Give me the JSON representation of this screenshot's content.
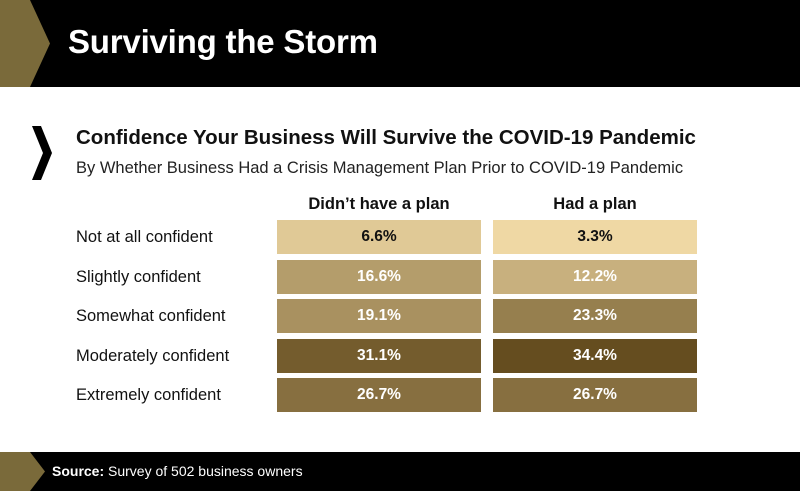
{
  "header": {
    "title": "Surviving the Storm",
    "accent_color": "#7a6a3a"
  },
  "chart_data": {
    "type": "table",
    "title": "Confidence Your Business Will Survive the COVID-19 Pandemic",
    "subtitle": "By Whether Business Had a Crisis Management Plan Prior to COVID-19 Pandemic",
    "columns": [
      "Didn’t have a plan",
      "Had a plan"
    ],
    "rows": [
      "Not at all confident",
      "Slightly confident",
      "Somewhat confident",
      "Moderately confident",
      "Extremely confident"
    ],
    "series": [
      {
        "name": "Didn’t have a plan",
        "values": [
          6.6,
          16.6,
          19.1,
          31.1,
          26.7
        ]
      },
      {
        "name": "Had a plan",
        "values": [
          3.3,
          12.2,
          23.3,
          34.4,
          26.7
        ]
      }
    ],
    "cell_labels": [
      [
        "6.6%",
        "3.3%"
      ],
      [
        "16.6%",
        "12.2%"
      ],
      [
        "19.1%",
        "23.3%"
      ],
      [
        "31.1%",
        "34.4%"
      ],
      [
        "26.7%",
        "26.7%"
      ]
    ],
    "color_scale": {
      "low": "#efd8a4",
      "high": "#654d1f"
    }
  },
  "footer": {
    "source_label": "Source:",
    "source_text": "Survey of 502 business owners"
  }
}
